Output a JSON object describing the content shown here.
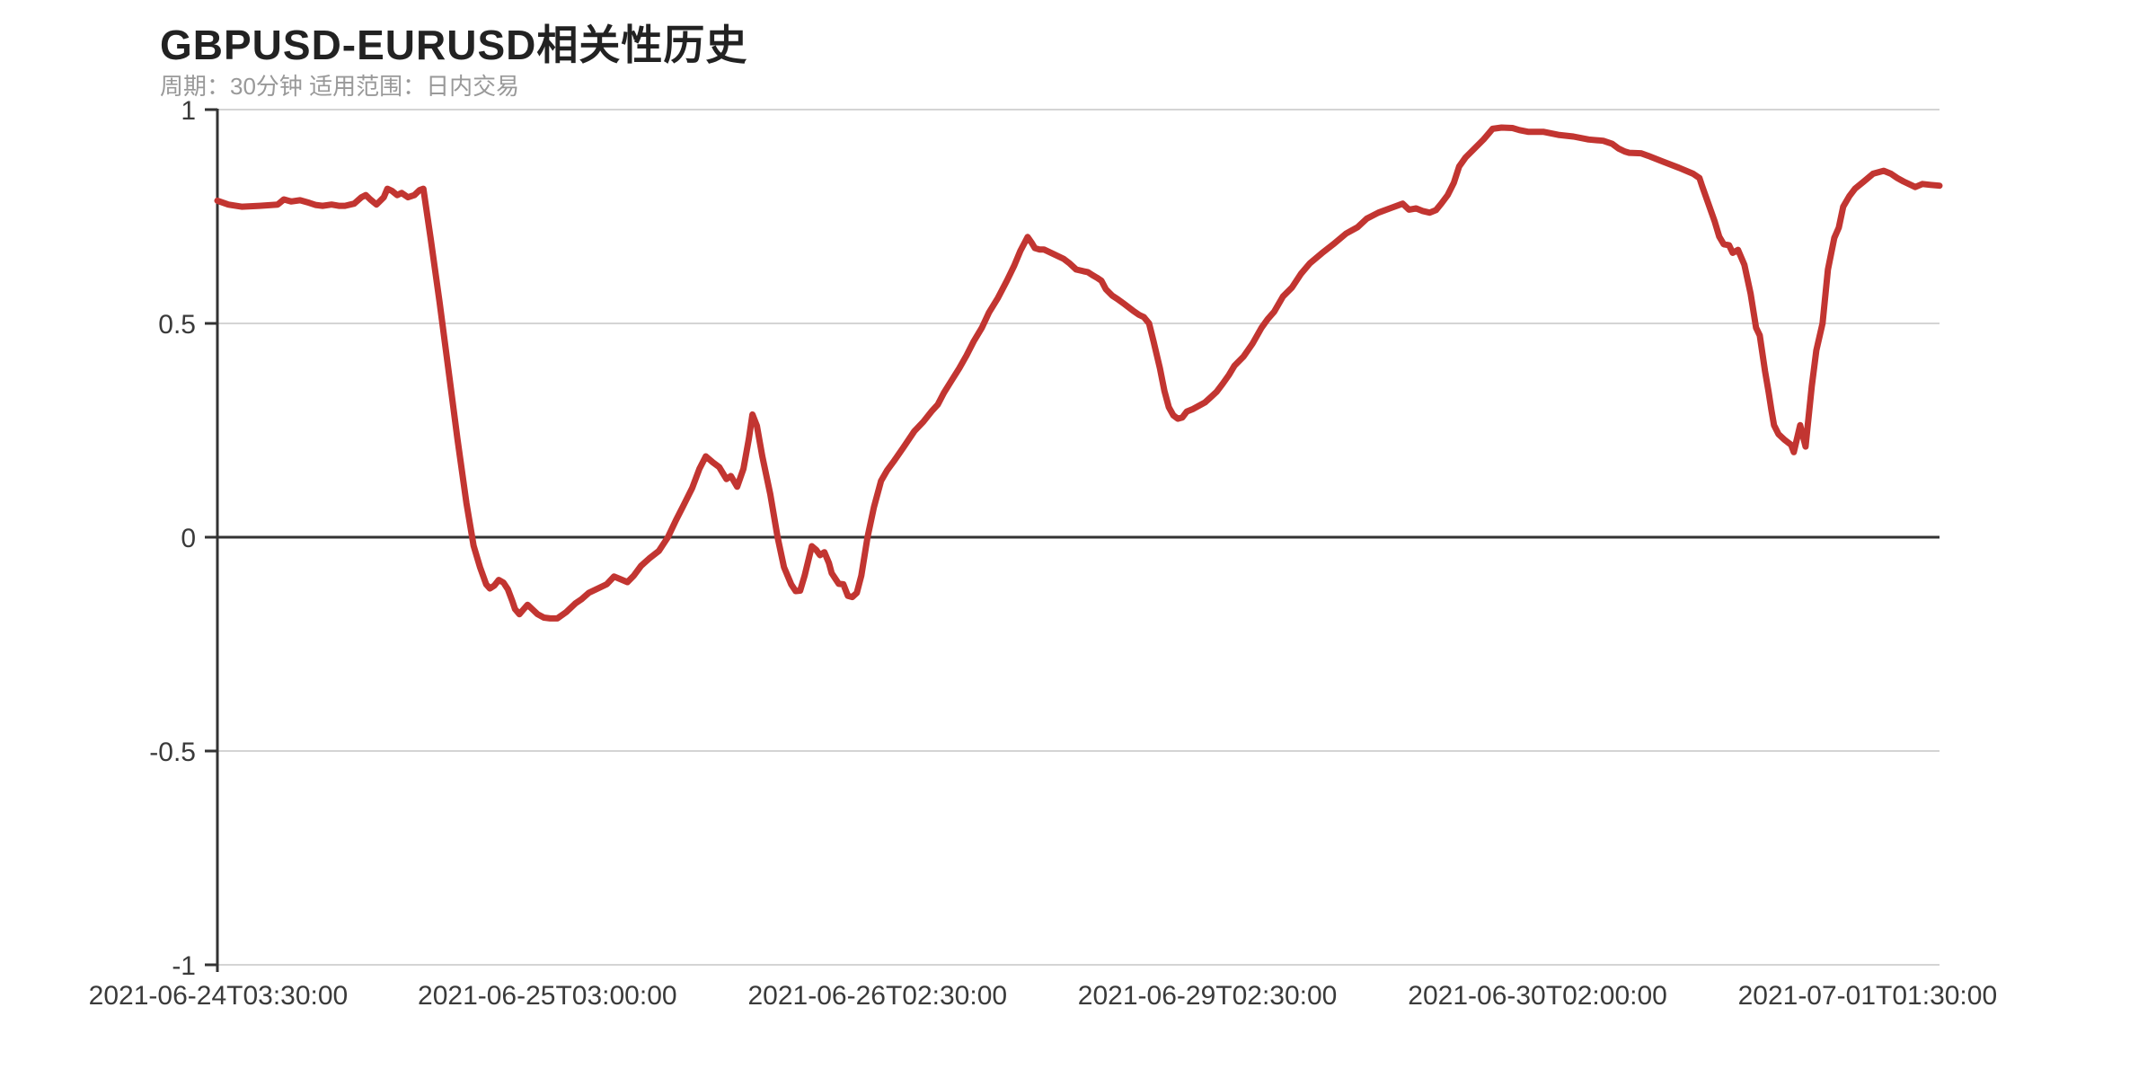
{
  "page": {
    "background": "#ffffff"
  },
  "header": {
    "title": "GBPUSD-EURUSD相关性历史",
    "subtitle": "周期：30分钟 适用范围：日内交易",
    "title_color": "#222222",
    "subtitle_color": "#999999"
  },
  "chart_data": {
    "type": "line",
    "title": "GBPUSD-EURUSD相关性历史",
    "subtitle": "周期：30分钟 适用范围：日内交易",
    "grid": {
      "show": true,
      "grid_color": "#d4d4d4",
      "zero_line_color": "#333333",
      "axis_color": "#333333",
      "label_color": "#3a3a3a"
    },
    "x_axis": {
      "kind": "category",
      "tick_labels": [
        "2021-06-24T03:30:00",
        "2021-06-25T03:00:00",
        "2021-06-26T02:30:00",
        "2021-06-29T02:30:00",
        "2021-06-30T02:00:00",
        "2021-07-01T01:30:00"
      ],
      "tick_positions_percent": [
        0.05,
        19.16,
        38.33,
        57.49,
        76.66,
        95.82
      ]
    },
    "y_axis": {
      "range": [
        -1,
        1
      ],
      "ticks": [
        "1",
        "0.5",
        "0",
        "-0.5",
        "-1"
      ],
      "tick_values": [
        1,
        0.5,
        0,
        -0.5,
        -1
      ],
      "zero_line": true
    },
    "series": [
      {
        "name": "GBPUSD-EURUSD相关性",
        "color": "#c23531",
        "line_width": 7,
        "points_percent_value": [
          [
            0.0,
            0.787
          ],
          [
            0.63,
            0.778
          ],
          [
            1.41,
            0.773
          ],
          [
            2.45,
            0.775
          ],
          [
            3.5,
            0.778
          ],
          [
            3.86,
            0.79
          ],
          [
            4.28,
            0.785
          ],
          [
            4.8,
            0.788
          ],
          [
            5.33,
            0.782
          ],
          [
            5.69,
            0.777
          ],
          [
            6.11,
            0.775
          ],
          [
            6.63,
            0.778
          ],
          [
            7.05,
            0.775
          ],
          [
            7.41,
            0.775
          ],
          [
            7.94,
            0.78
          ],
          [
            8.36,
            0.795
          ],
          [
            8.62,
            0.8
          ],
          [
            8.88,
            0.79
          ],
          [
            9.24,
            0.778
          ],
          [
            9.66,
            0.795
          ],
          [
            9.87,
            0.815
          ],
          [
            10.13,
            0.81
          ],
          [
            10.44,
            0.8
          ],
          [
            10.7,
            0.805
          ],
          [
            11.07,
            0.795
          ],
          [
            11.44,
            0.8
          ],
          [
            11.75,
            0.812
          ],
          [
            11.96,
            0.815
          ],
          [
            12.38,
            0.7
          ],
          [
            12.9,
            0.55
          ],
          [
            13.42,
            0.39
          ],
          [
            13.94,
            0.23
          ],
          [
            14.46,
            0.08
          ],
          [
            14.88,
            -0.02
          ],
          [
            15.25,
            -0.07
          ],
          [
            15.61,
            -0.11
          ],
          [
            15.82,
            -0.12
          ],
          [
            16.08,
            -0.113
          ],
          [
            16.34,
            -0.1
          ],
          [
            16.61,
            -0.106
          ],
          [
            16.87,
            -0.122
          ],
          [
            17.13,
            -0.15
          ],
          [
            17.28,
            -0.168
          ],
          [
            17.54,
            -0.18
          ],
          [
            17.75,
            -0.17
          ],
          [
            18.01,
            -0.158
          ],
          [
            18.28,
            -0.168
          ],
          [
            18.59,
            -0.18
          ],
          [
            18.96,
            -0.188
          ],
          [
            19.32,
            -0.19
          ],
          [
            19.74,
            -0.19
          ],
          [
            20.26,
            -0.175
          ],
          [
            20.78,
            -0.155
          ],
          [
            21.15,
            -0.145
          ],
          [
            21.57,
            -0.13
          ],
          [
            22.09,
            -0.12
          ],
          [
            22.61,
            -0.11
          ],
          [
            23.03,
            -0.092
          ],
          [
            23.39,
            -0.098
          ],
          [
            23.81,
            -0.105
          ],
          [
            24.18,
            -0.09
          ],
          [
            24.6,
            -0.067
          ],
          [
            25.07,
            -0.05
          ],
          [
            25.64,
            -0.032
          ],
          [
            26.16,
            0.0
          ],
          [
            26.63,
            0.04
          ],
          [
            27.05,
            0.073
          ],
          [
            27.57,
            0.115
          ],
          [
            27.99,
            0.16
          ],
          [
            28.36,
            0.189
          ],
          [
            28.77,
            0.175
          ],
          [
            29.14,
            0.164
          ],
          [
            29.56,
            0.136
          ],
          [
            29.82,
            0.143
          ],
          [
            30.18,
            0.118
          ],
          [
            30.55,
            0.16
          ],
          [
            30.86,
            0.23
          ],
          [
            31.07,
            0.287
          ],
          [
            31.33,
            0.26
          ],
          [
            31.64,
            0.19
          ],
          [
            32.11,
            0.1
          ],
          [
            32.53,
            0.0
          ],
          [
            32.9,
            -0.07
          ],
          [
            33.32,
            -0.11
          ],
          [
            33.58,
            -0.126
          ],
          [
            33.84,
            -0.125
          ],
          [
            34.1,
            -0.09
          ],
          [
            34.52,
            -0.021
          ],
          [
            34.78,
            -0.03
          ],
          [
            34.99,
            -0.042
          ],
          [
            35.25,
            -0.035
          ],
          [
            35.51,
            -0.06
          ],
          [
            35.67,
            -0.084
          ],
          [
            35.93,
            -0.1
          ],
          [
            36.08,
            -0.109
          ],
          [
            36.35,
            -0.11
          ],
          [
            36.61,
            -0.137
          ],
          [
            36.87,
            -0.14
          ],
          [
            37.13,
            -0.13
          ],
          [
            37.39,
            -0.09
          ],
          [
            37.75,
            0.0
          ],
          [
            38.12,
            0.07
          ],
          [
            38.54,
            0.132
          ],
          [
            38.9,
            0.157
          ],
          [
            39.32,
            0.18
          ],
          [
            39.84,
            0.21
          ],
          [
            40.47,
            0.248
          ],
          [
            40.99,
            0.27
          ],
          [
            41.51,
            0.296
          ],
          [
            41.83,
            0.31
          ],
          [
            42.19,
            0.338
          ],
          [
            42.61,
            0.365
          ],
          [
            43.08,
            0.395
          ],
          [
            43.5,
            0.425
          ],
          [
            43.92,
            0.458
          ],
          [
            44.39,
            0.49
          ],
          [
            44.8,
            0.525
          ],
          [
            45.33,
            0.56
          ],
          [
            45.85,
            0.6
          ],
          [
            46.27,
            0.635
          ],
          [
            46.63,
            0.67
          ],
          [
            46.89,
            0.69
          ],
          [
            47.05,
            0.702
          ],
          [
            47.26,
            0.69
          ],
          [
            47.47,
            0.676
          ],
          [
            47.73,
            0.673
          ],
          [
            47.99,
            0.673
          ],
          [
            48.46,
            0.664
          ],
          [
            49.14,
            0.651
          ],
          [
            49.5,
            0.64
          ],
          [
            49.87,
            0.626
          ],
          [
            50.29,
            0.622
          ],
          [
            50.55,
            0.62
          ],
          [
            50.81,
            0.613
          ],
          [
            51.07,
            0.607
          ],
          [
            51.33,
            0.6
          ],
          [
            51.59,
            0.58
          ],
          [
            51.96,
            0.565
          ],
          [
            52.27,
            0.557
          ],
          [
            52.64,
            0.546
          ],
          [
            53.16,
            0.53
          ],
          [
            53.52,
            0.52
          ],
          [
            53.79,
            0.515
          ],
          [
            54.1,
            0.5
          ],
          [
            54.36,
            0.458
          ],
          [
            54.73,
            0.395
          ],
          [
            54.99,
            0.342
          ],
          [
            55.25,
            0.304
          ],
          [
            55.51,
            0.285
          ],
          [
            55.77,
            0.277
          ],
          [
            56.03,
            0.28
          ],
          [
            56.29,
            0.294
          ],
          [
            56.66,
            0.3
          ],
          [
            56.97,
            0.307
          ],
          [
            57.34,
            0.315
          ],
          [
            57.7,
            0.328
          ],
          [
            58.02,
            0.34
          ],
          [
            58.38,
            0.359
          ],
          [
            58.75,
            0.38
          ],
          [
            59.06,
            0.401
          ],
          [
            59.58,
            0.422
          ],
          [
            60.1,
            0.452
          ],
          [
            60.63,
            0.49
          ],
          [
            60.99,
            0.51
          ],
          [
            61.36,
            0.527
          ],
          [
            61.88,
            0.563
          ],
          [
            62.4,
            0.584
          ],
          [
            62.92,
            0.616
          ],
          [
            63.45,
            0.641
          ],
          [
            64.13,
            0.664
          ],
          [
            64.8,
            0.685
          ],
          [
            65.54,
            0.71
          ],
          [
            66.21,
            0.725
          ],
          [
            66.74,
            0.745
          ],
          [
            67.42,
            0.759
          ],
          [
            68.15,
            0.77
          ],
          [
            68.83,
            0.78
          ],
          [
            69.19,
            0.766
          ],
          [
            69.61,
            0.769
          ],
          [
            69.97,
            0.763
          ],
          [
            70.39,
            0.759
          ],
          [
            70.76,
            0.765
          ],
          [
            71.07,
            0.78
          ],
          [
            71.44,
            0.8
          ],
          [
            71.8,
            0.829
          ],
          [
            72.11,
            0.867
          ],
          [
            72.48,
            0.888
          ],
          [
            73.0,
            0.909
          ],
          [
            73.52,
            0.93
          ],
          [
            73.84,
            0.945
          ],
          [
            74.05,
            0.955
          ],
          [
            74.57,
            0.958
          ],
          [
            75.2,
            0.957
          ],
          [
            75.61,
            0.952
          ],
          [
            76.14,
            0.948
          ],
          [
            77.02,
            0.948
          ],
          [
            77.86,
            0.941
          ],
          [
            78.75,
            0.937
          ],
          [
            79.63,
            0.93
          ],
          [
            80.47,
            0.927
          ],
          [
            80.99,
            0.92
          ],
          [
            81.36,
            0.909
          ],
          [
            81.72,
            0.902
          ],
          [
            81.98,
            0.899
          ],
          [
            82.66,
            0.898
          ],
          [
            83.08,
            0.892
          ],
          [
            83.97,
            0.878
          ],
          [
            84.86,
            0.864
          ],
          [
            85.69,
            0.85
          ],
          [
            86.06,
            0.84
          ],
          [
            86.21,
            0.822
          ],
          [
            86.58,
            0.78
          ],
          [
            86.95,
            0.738
          ],
          [
            87.21,
            0.703
          ],
          [
            87.47,
            0.685
          ],
          [
            87.78,
            0.683
          ],
          [
            87.99,
            0.665
          ],
          [
            88.3,
            0.672
          ],
          [
            88.67,
            0.637
          ],
          [
            89.03,
            0.57
          ],
          [
            89.35,
            0.49
          ],
          [
            89.56,
            0.472
          ],
          [
            89.87,
            0.388
          ],
          [
            90.08,
            0.339
          ],
          [
            90.24,
            0.297
          ],
          [
            90.39,
            0.262
          ],
          [
            90.65,
            0.241
          ],
          [
            91.02,
            0.227
          ],
          [
            91.38,
            0.216
          ],
          [
            91.54,
            0.199
          ],
          [
            91.91,
            0.262
          ],
          [
            92.22,
            0.212
          ],
          [
            92.58,
            0.353
          ],
          [
            92.85,
            0.437
          ],
          [
            93.21,
            0.5
          ],
          [
            93.52,
            0.626
          ],
          [
            93.89,
            0.7
          ],
          [
            94.15,
            0.724
          ],
          [
            94.41,
            0.773
          ],
          [
            94.77,
            0.798
          ],
          [
            95.09,
            0.815
          ],
          [
            95.61,
            0.832
          ],
          [
            96.14,
            0.85
          ],
          [
            96.76,
            0.857
          ],
          [
            97.18,
            0.85
          ],
          [
            97.55,
            0.84
          ],
          [
            97.91,
            0.832
          ],
          [
            98.22,
            0.826
          ],
          [
            98.59,
            0.819
          ],
          [
            99.01,
            0.826
          ],
          [
            99.48,
            0.824
          ],
          [
            100.0,
            0.822
          ]
        ]
      }
    ]
  }
}
